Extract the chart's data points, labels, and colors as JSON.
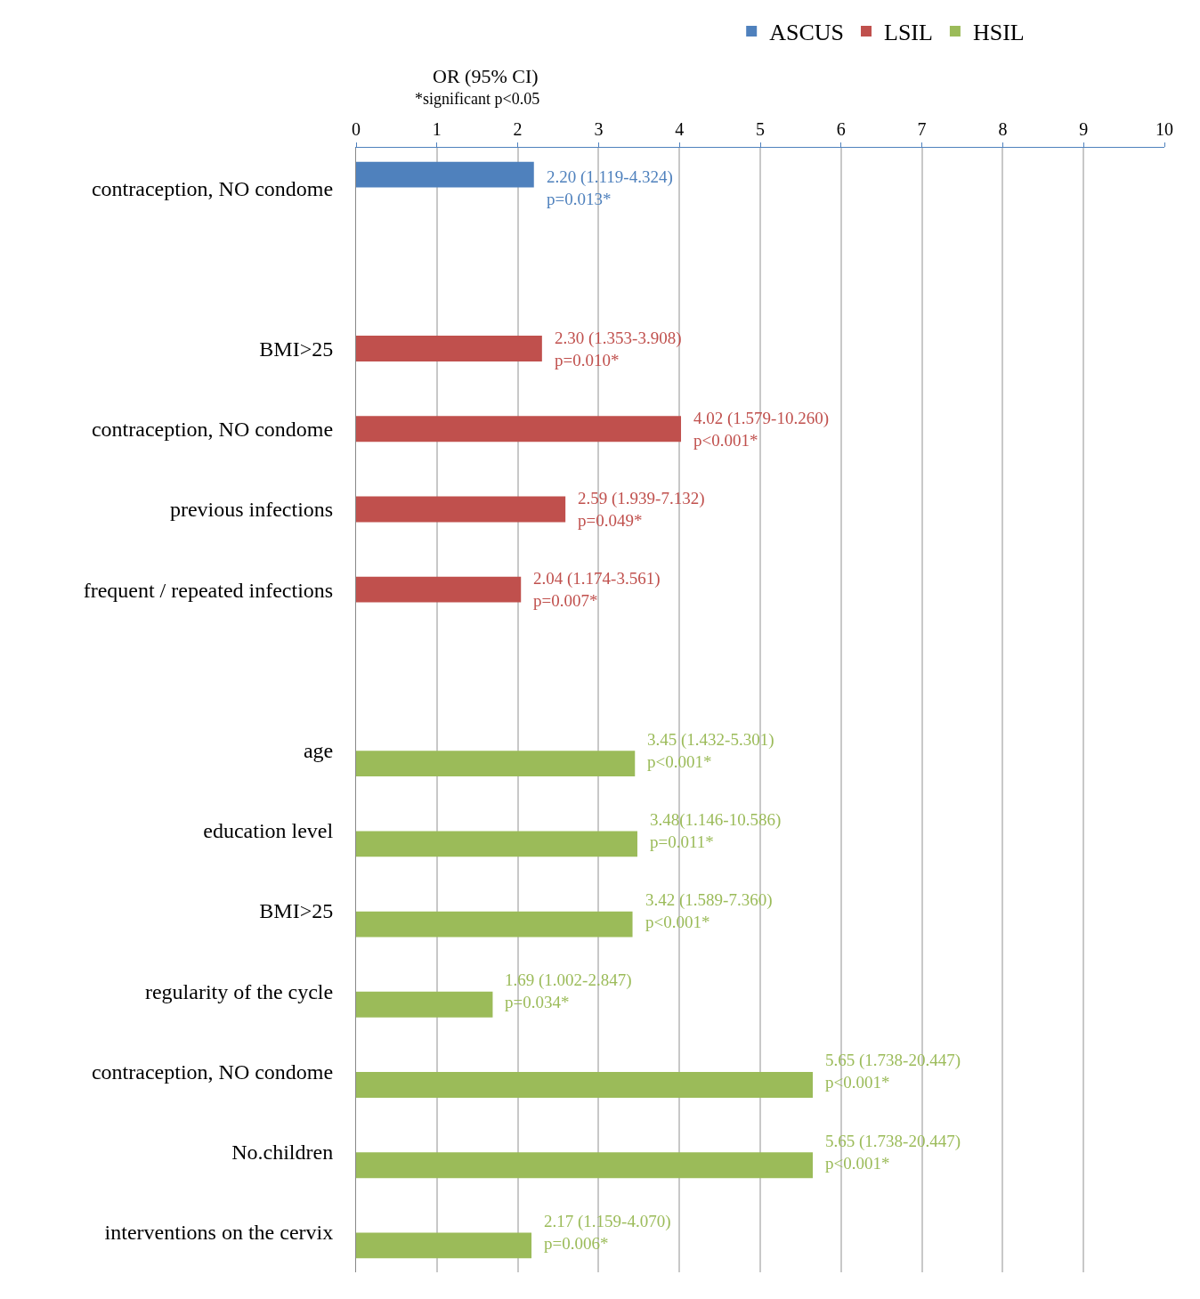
{
  "chart_data": {
    "type": "bar",
    "orientation": "horizontal",
    "categories": [
      "contraception, NO condome",
      null,
      "BMI>25",
      "contraception, NO condome",
      "previous infections",
      "frequent / repeated infections",
      null,
      "age",
      "education level",
      "BMI>25",
      "regularity of the cycle",
      "contraception, NO condome",
      "No.children",
      "interventions on the cervix"
    ],
    "series": [
      {
        "name": "ASCUS",
        "color": "#4f81bd",
        "values": [
          2.2,
          null,
          null,
          null,
          null,
          null,
          null,
          null,
          null,
          null,
          null,
          null,
          null,
          null
        ],
        "value_labels": [
          "2.20 (1.119-4.324)\np=0.013*",
          null,
          null,
          null,
          null,
          null,
          null,
          null,
          null,
          null,
          null,
          null,
          null,
          null
        ]
      },
      {
        "name": "LSIL",
        "color": "#c0504d",
        "values": [
          null,
          null,
          2.3,
          4.02,
          2.59,
          2.04,
          null,
          null,
          null,
          null,
          null,
          null,
          null,
          null
        ],
        "value_labels": [
          null,
          null,
          "2.30 (1.353-3.908)\np=0.010*",
          "4.02 (1.579-10.260)\np<0.001*",
          "2.59 (1.939-7.132)\np=0.049*",
          "2.04 (1.174-3.561)\np=0.007*",
          null,
          null,
          null,
          null,
          null,
          null,
          null,
          null
        ]
      },
      {
        "name": "HSIL",
        "color": "#9bbb59",
        "values": [
          null,
          null,
          null,
          null,
          null,
          null,
          null,
          3.45,
          3.48,
          3.42,
          1.69,
          5.65,
          5.65,
          2.17
        ],
        "value_labels": [
          null,
          null,
          null,
          null,
          null,
          null,
          null,
          "3.45 (1.432-5.301)\np<0.001*",
          "3.48(1.146-10.586)\np=0.011*",
          "3.42 (1.589-7.360)\np<0.001*",
          "1.69 (1.002-2.847)\np=0.034*",
          "5.65 (1.738-20.447)\np<0.001*",
          "5.65 (1.738-20.447)\np<0.001*",
          "2.17 (1.159-4.070)\np=0.006*"
        ]
      }
    ],
    "xlim": [
      0,
      10
    ],
    "xticks": [
      0,
      1,
      2,
      3,
      4,
      5,
      6,
      7,
      8,
      9,
      10
    ],
    "grid": "x",
    "legend": "top",
    "annotations": [
      "OR (95% CI)",
      "*significant p<0.05"
    ]
  }
}
